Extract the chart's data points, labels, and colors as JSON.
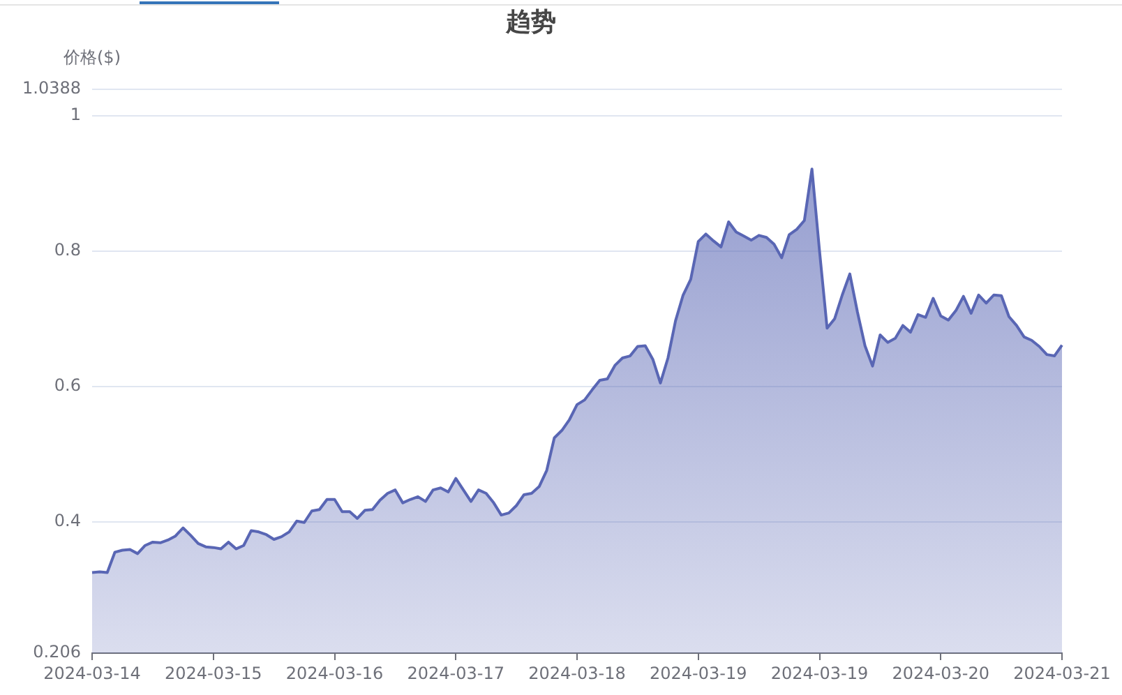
{
  "chart_data": {
    "type": "area",
    "title": "趋势",
    "ylabel": "价格($)",
    "categories": [
      "2024-03-14",
      null,
      null,
      null,
      null,
      null,
      null,
      null,
      null,
      null,
      null,
      null,
      null,
      null,
      null,
      null,
      "2024-03-15",
      null,
      null,
      null,
      null,
      null,
      null,
      null,
      null,
      null,
      null,
      null,
      null,
      null,
      null,
      null,
      "2024-03-16",
      null,
      null,
      null,
      null,
      null,
      null,
      null,
      null,
      null,
      null,
      null,
      null,
      null,
      null,
      null,
      "2024-03-17",
      null,
      null,
      null,
      null,
      null,
      null,
      null,
      null,
      null,
      null,
      null,
      null,
      null,
      null,
      null,
      "2024-03-18",
      null,
      null,
      null,
      null,
      null,
      null,
      null,
      null,
      null,
      null,
      null,
      null,
      null,
      null,
      null,
      "2024-03-19",
      null,
      null,
      null,
      null,
      null,
      null,
      null,
      null,
      null,
      null,
      null,
      null,
      null,
      null,
      null,
      "2024-03-19",
      null,
      null,
      null,
      null,
      null,
      null,
      null,
      null,
      null,
      null,
      null,
      null,
      null,
      null,
      null,
      "2024-03-20",
      null,
      null,
      null,
      null,
      null,
      null,
      null,
      null,
      null,
      null,
      null,
      null,
      null,
      null,
      null,
      "2024-03-21"
    ],
    "series": [
      {
        "color": "#5966b4",
        "values": [
          0.325,
          0.326,
          0.325,
          0.355,
          0.358,
          0.359,
          0.353,
          0.365,
          0.37,
          0.369,
          0.373,
          0.379,
          0.391,
          0.38,
          0.368,
          0.363,
          0.362,
          0.36,
          0.37,
          0.36,
          0.365,
          0.387,
          0.385,
          0.381,
          0.374,
          0.378,
          0.385,
          0.401,
          0.399,
          0.416,
          0.418,
          0.433,
          0.433,
          0.415,
          0.415,
          0.405,
          0.417,
          0.418,
          0.432,
          0.442,
          0.447,
          0.428,
          0.433,
          0.437,
          0.43,
          0.447,
          0.45,
          0.444,
          0.464,
          0.447,
          0.43,
          0.447,
          0.442,
          0.428,
          0.41,
          0.413,
          0.424,
          0.44,
          0.442,
          0.452,
          0.476,
          0.524,
          0.535,
          0.551,
          0.573,
          0.58,
          0.595,
          0.609,
          0.611,
          0.631,
          0.642,
          0.645,
          0.659,
          0.66,
          0.64,
          0.605,
          0.642,
          0.697,
          0.735,
          0.758,
          0.814,
          0.825,
          0.815,
          0.806,
          0.843,
          0.828,
          0.822,
          0.816,
          0.823,
          0.82,
          0.81,
          0.79,
          0.824,
          0.832,
          0.845,
          0.921,
          0.8,
          0.686,
          0.7,
          0.735,
          0.766,
          0.71,
          0.66,
          0.63,
          0.676,
          0.665,
          0.671,
          0.69,
          0.68,
          0.706,
          0.702,
          0.73,
          0.704,
          0.698,
          0.712,
          0.733,
          0.708,
          0.735,
          0.723,
          0.735,
          0.734,
          0.703,
          0.69,
          0.673,
          0.668,
          0.659,
          0.647,
          0.645,
          0.661
        ]
      }
    ],
    "ylim": [
      0.206,
      1.0388
    ],
    "yticks": [
      0.206,
      0.4,
      0.6,
      0.8,
      1,
      1.0388
    ],
    "grid": "y"
  }
}
